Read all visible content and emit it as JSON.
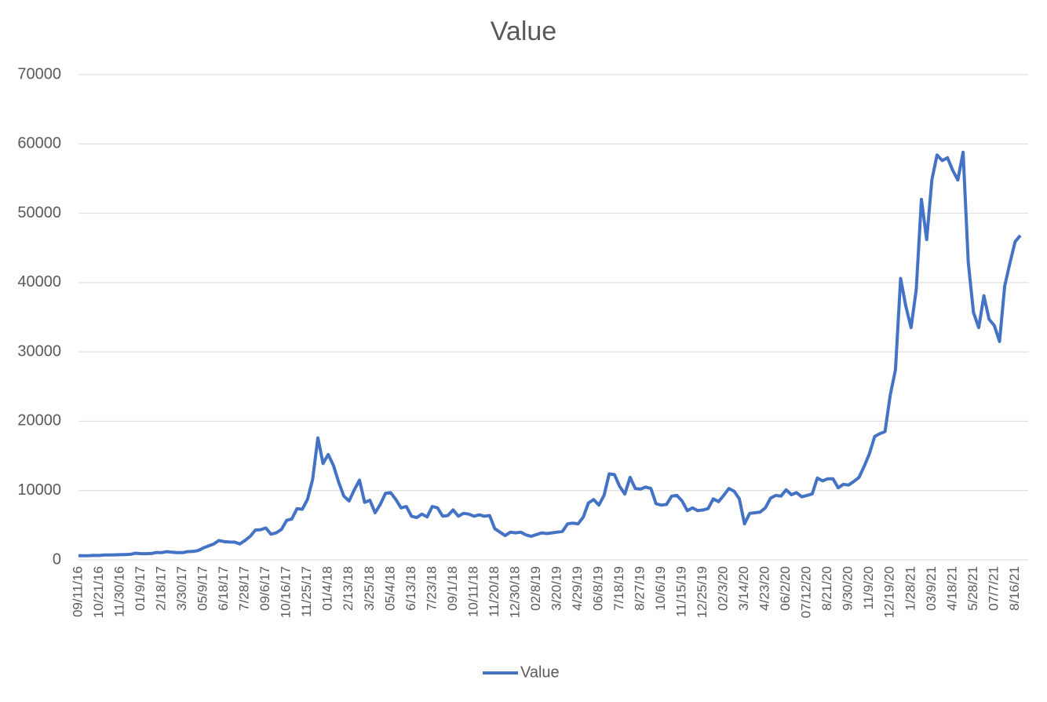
{
  "chart_data": {
    "type": "line",
    "title": "Value",
    "categories": [
      "09/11/16",
      null,
      null,
      null,
      "10/21/16",
      null,
      null,
      null,
      "11/30/16",
      null,
      null,
      null,
      "01/9/17",
      null,
      null,
      null,
      "2/18/17",
      null,
      null,
      null,
      "3/30/17",
      null,
      null,
      null,
      "05/9/17",
      null,
      null,
      null,
      "6/18/17",
      null,
      null,
      null,
      "7/28/17",
      null,
      null,
      null,
      "09/6/17",
      null,
      null,
      null,
      "10/16/17",
      null,
      null,
      null,
      "11/25/17",
      null,
      null,
      null,
      "01/4/18",
      null,
      null,
      null,
      "2/13/18",
      null,
      null,
      null,
      "3/25/18",
      null,
      null,
      null,
      "05/4/18",
      null,
      null,
      null,
      "6/13/18",
      null,
      null,
      null,
      "7/23/18",
      null,
      null,
      null,
      "09/1/18",
      null,
      null,
      null,
      "10/11/18",
      null,
      null,
      null,
      "11/20/18",
      null,
      null,
      null,
      "12/30/18",
      null,
      null,
      null,
      "02/8/19",
      null,
      null,
      null,
      "3/20/19",
      null,
      null,
      null,
      "4/29/19",
      null,
      null,
      null,
      "06/8/19",
      null,
      null,
      null,
      "7/18/19",
      null,
      null,
      null,
      "8/27/19",
      null,
      null,
      null,
      "10/6/19",
      null,
      null,
      null,
      "11/15/19",
      null,
      null,
      null,
      "12/25/19",
      null,
      null,
      null,
      "02/3/20",
      null,
      null,
      null,
      "3/14/20",
      null,
      null,
      null,
      "4/23/20",
      null,
      null,
      null,
      "06/2/20",
      null,
      null,
      null,
      "07/12/20",
      null,
      null,
      null,
      "8/21/20",
      null,
      null,
      null,
      "9/30/20",
      null,
      null,
      null,
      "11/9/20",
      null,
      null,
      null,
      "12/19/20",
      null,
      null,
      null,
      "1/28/21",
      null,
      null,
      null,
      "03/9/21",
      null,
      null,
      null,
      "4/18/21",
      null,
      null,
      null,
      "5/28/21",
      null,
      null,
      null,
      "07/7/21",
      null,
      null,
      null,
      "8/16/21",
      null
    ],
    "series": [
      {
        "name": "Value",
        "color": "#4472c4",
        "values": [
          607,
          595,
          615,
          640,
          630,
          700,
          715,
          730,
          742,
          775,
          800,
          960,
          900,
          900,
          920,
          1060,
          1055,
          1190,
          1110,
          1040,
          1040,
          1190,
          1210,
          1350,
          1720,
          2000,
          2300,
          2800,
          2640,
          2580,
          2560,
          2300,
          2800,
          3400,
          4300,
          4350,
          4600,
          3700,
          3900,
          4400,
          5700,
          5900,
          7400,
          7300,
          8700,
          11600,
          17600,
          13900,
          15200,
          13600,
          11200,
          9200,
          8500,
          10100,
          11500,
          8300,
          8600,
          6800,
          8000,
          9600,
          9700,
          8700,
          7500,
          7700,
          6300,
          6100,
          6600,
          6200,
          7700,
          7500,
          6300,
          6400,
          7200,
          6300,
          6700,
          6600,
          6300,
          6500,
          6300,
          6400,
          4500,
          4000,
          3500,
          4000,
          3900,
          4000,
          3600,
          3400,
          3650,
          3900,
          3800,
          3900,
          4000,
          4100,
          5200,
          5300,
          5200,
          6150,
          8200,
          8700,
          7900,
          9300,
          12400,
          12300,
          10600,
          9500,
          11900,
          10300,
          10200,
          10500,
          10300,
          8100,
          7900,
          8000,
          9200,
          9300,
          8500,
          7100,
          7500,
          7100,
          7200,
          7400,
          8800,
          8400,
          9300,
          10300,
          9900,
          8800,
          5200,
          6700,
          6800,
          6900,
          7500,
          8900,
          9300,
          9200,
          10100,
          9400,
          9700,
          9100,
          9300,
          9500,
          11800,
          11400,
          11700,
          11700,
          10400,
          10900,
          10800,
          11300,
          11900,
          13500,
          15300,
          17800,
          18200,
          18500,
          23800,
          27400,
          40600,
          36600,
          33500,
          39000,
          52000,
          46200,
          54800,
          58400,
          57600,
          58000,
          56200,
          54800,
          58800,
          42900,
          35700,
          33500,
          38100,
          34700,
          33800,
          31500,
          39500,
          42800,
          45900,
          46800
        ]
      }
    ],
    "ylim": [
      0,
      70000
    ],
    "yticks": [
      0,
      10000,
      20000,
      30000,
      40000,
      50000,
      60000,
      70000
    ],
    "grid": true,
    "legend": "bottom"
  }
}
